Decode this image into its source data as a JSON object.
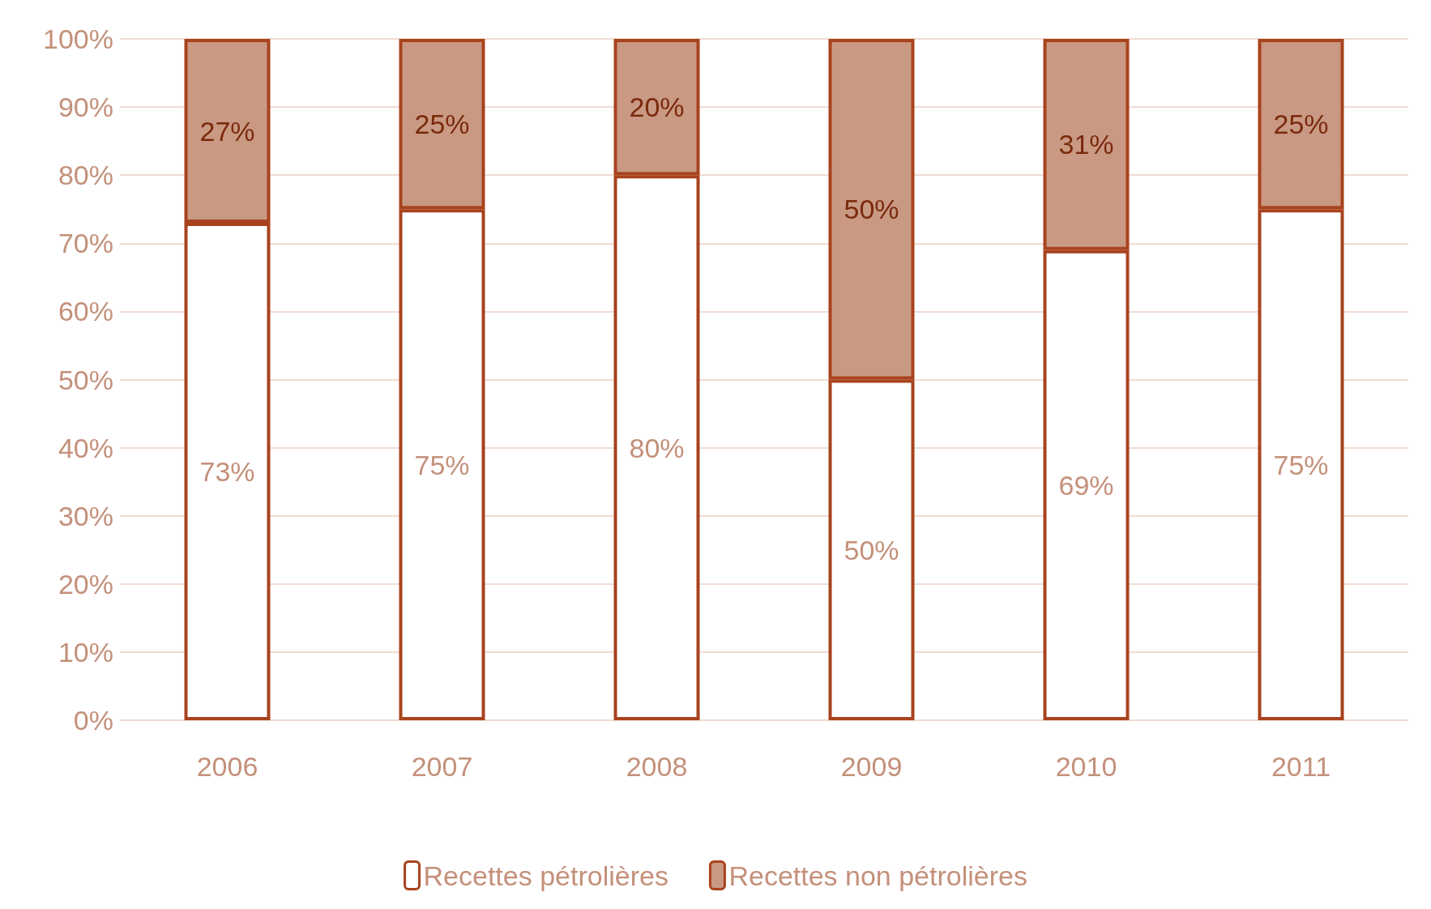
{
  "chart_data": {
    "type": "bar",
    "stacked": true,
    "categories": [
      "2006",
      "2007",
      "2008",
      "2009",
      "2010",
      "2011"
    ],
    "series": [
      {
        "name": "Recettes pétrolières",
        "color": "#ffffff",
        "values": [
          73,
          75,
          80,
          50,
          69,
          75
        ],
        "value_labels": [
          "73%",
          "75%",
          "80%",
          "50%",
          "69%",
          "75%"
        ]
      },
      {
        "name": "Recettes non pétrolières",
        "color": "#c99983",
        "values": [
          27,
          25,
          20,
          50,
          31,
          25
        ],
        "value_labels": [
          "27%",
          "25%",
          "20%",
          "50%",
          "31%",
          "25%"
        ]
      }
    ],
    "ylim": [
      0,
      100
    ],
    "yticks": [
      {
        "value": 0,
        "label": "0%"
      },
      {
        "value": 10,
        "label": "10%"
      },
      {
        "value": 20,
        "label": "20%"
      },
      {
        "value": 30,
        "label": "30%"
      },
      {
        "value": 40,
        "label": "40%"
      },
      {
        "value": 50,
        "label": "50%"
      },
      {
        "value": 60,
        "label": "60%"
      },
      {
        "value": 70,
        "label": "70%"
      },
      {
        "value": 80,
        "label": "80%"
      },
      {
        "value": 90,
        "label": "90%"
      },
      {
        "value": 100,
        "label": "100%"
      }
    ],
    "grid": "y",
    "legend": "bottom"
  }
}
